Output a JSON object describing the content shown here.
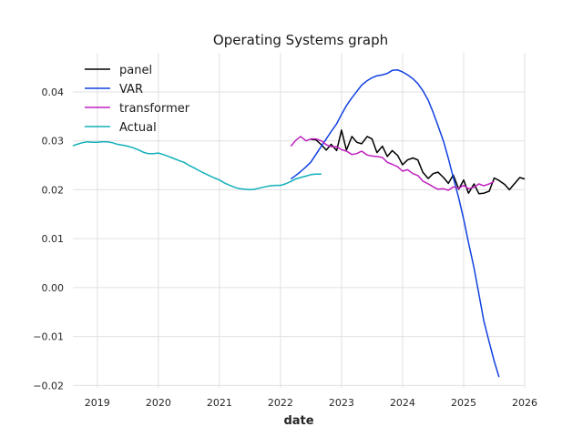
{
  "chart_data": {
    "type": "line",
    "title": "Operating Systems graph",
    "xlabel": "date",
    "ylabel": "",
    "xlim": [
      2018.6,
      2026.0
    ],
    "ylim": [
      -0.0205,
      0.048
    ],
    "x_ticks": [
      2019,
      2020,
      2021,
      2022,
      2023,
      2024,
      2025,
      2026
    ],
    "y_ticks": [
      -0.02,
      -0.01,
      0.0,
      0.01,
      0.02,
      0.03,
      0.04
    ],
    "y_tick_labels": [
      "−0.02",
      "−0.01",
      "0.00",
      "0.01",
      "0.02",
      "0.03",
      "0.04"
    ],
    "grid": true,
    "legend_position": "top-left",
    "series": [
      {
        "name": "panel",
        "color": "#000000",
        "points": [
          [
            2022.5,
            0.0303
          ],
          [
            2022.58,
            0.0302
          ],
          [
            2022.67,
            0.0292
          ],
          [
            2022.75,
            0.0281
          ],
          [
            2022.83,
            0.0293
          ],
          [
            2022.92,
            0.028
          ],
          [
            2023.0,
            0.0322
          ],
          [
            2023.08,
            0.0281
          ],
          [
            2023.17,
            0.0309
          ],
          [
            2023.25,
            0.0297
          ],
          [
            2023.33,
            0.0294
          ],
          [
            2023.42,
            0.0309
          ],
          [
            2023.5,
            0.0304
          ],
          [
            2023.58,
            0.0276
          ],
          [
            2023.67,
            0.0289
          ],
          [
            2023.75,
            0.0268
          ],
          [
            2023.83,
            0.028
          ],
          [
            2023.92,
            0.027
          ],
          [
            2024.0,
            0.0251
          ],
          [
            2024.08,
            0.0261
          ],
          [
            2024.17,
            0.0265
          ],
          [
            2024.25,
            0.0261
          ],
          [
            2024.33,
            0.0236
          ],
          [
            2024.42,
            0.0223
          ],
          [
            2024.5,
            0.0233
          ],
          [
            2024.58,
            0.0236
          ],
          [
            2024.67,
            0.0225
          ],
          [
            2024.75,
            0.0213
          ],
          [
            2024.83,
            0.023
          ],
          [
            2024.92,
            0.0201
          ],
          [
            2025.0,
            0.022
          ],
          [
            2025.08,
            0.0193
          ],
          [
            2025.17,
            0.0212
          ],
          [
            2025.25,
            0.0192
          ],
          [
            2025.33,
            0.0193
          ],
          [
            2025.42,
            0.0197
          ],
          [
            2025.5,
            0.0224
          ],
          [
            2025.58,
            0.0219
          ],
          [
            2025.67,
            0.0211
          ],
          [
            2025.75,
            0.02
          ],
          [
            2025.83,
            0.0212
          ],
          [
            2025.92,
            0.0225
          ],
          [
            2026.0,
            0.0222
          ]
        ]
      },
      {
        "name": "VAR",
        "color": "#1040e0",
        "points": [
          [
            2022.17,
            0.0222
          ],
          [
            2022.25,
            0.0229
          ],
          [
            2022.33,
            0.0237
          ],
          [
            2022.42,
            0.0247
          ],
          [
            2022.5,
            0.0257
          ],
          [
            2022.58,
            0.0272
          ],
          [
            2022.67,
            0.0289
          ],
          [
            2022.75,
            0.0304
          ],
          [
            2022.83,
            0.0319
          ],
          [
            2022.92,
            0.0335
          ],
          [
            2023.0,
            0.0354
          ],
          [
            2023.08,
            0.0372
          ],
          [
            2023.17,
            0.0388
          ],
          [
            2023.25,
            0.0401
          ],
          [
            2023.33,
            0.0414
          ],
          [
            2023.42,
            0.0423
          ],
          [
            2023.5,
            0.0429
          ],
          [
            2023.58,
            0.0433
          ],
          [
            2023.67,
            0.0435
          ],
          [
            2023.75,
            0.0438
          ],
          [
            2023.83,
            0.0444
          ],
          [
            2023.92,
            0.0445
          ],
          [
            2024.0,
            0.0441
          ],
          [
            2024.08,
            0.0435
          ],
          [
            2024.17,
            0.0427
          ],
          [
            2024.25,
            0.0417
          ],
          [
            2024.33,
            0.0403
          ],
          [
            2024.42,
            0.0383
          ],
          [
            2024.5,
            0.0358
          ],
          [
            2024.58,
            0.0331
          ],
          [
            2024.67,
            0.0299
          ],
          [
            2024.75,
            0.0264
          ],
          [
            2024.83,
            0.0225
          ],
          [
            2024.92,
            0.0183
          ],
          [
            2025.0,
            0.014
          ],
          [
            2025.08,
            0.0092
          ],
          [
            2025.17,
            0.004
          ],
          [
            2025.25,
            -0.0013
          ],
          [
            2025.33,
            -0.0068
          ],
          [
            2025.42,
            -0.0112
          ],
          [
            2025.5,
            -0.015
          ],
          [
            2025.58,
            -0.0183
          ]
        ]
      },
      {
        "name": "transformer",
        "color": "#c020c0",
        "points": [
          [
            2022.17,
            0.0289
          ],
          [
            2022.25,
            0.0301
          ],
          [
            2022.33,
            0.0309
          ],
          [
            2022.42,
            0.03
          ],
          [
            2022.5,
            0.0304
          ],
          [
            2022.58,
            0.0304
          ],
          [
            2022.67,
            0.03
          ],
          [
            2022.75,
            0.0292
          ],
          [
            2022.83,
            0.0288
          ],
          [
            2022.92,
            0.0288
          ],
          [
            2023.0,
            0.0282
          ],
          [
            2023.08,
            0.0279
          ],
          [
            2023.17,
            0.0272
          ],
          [
            2023.25,
            0.0274
          ],
          [
            2023.33,
            0.0279
          ],
          [
            2023.42,
            0.0271
          ],
          [
            2023.5,
            0.0269
          ],
          [
            2023.58,
            0.0268
          ],
          [
            2023.67,
            0.0266
          ],
          [
            2023.75,
            0.0256
          ],
          [
            2023.83,
            0.0252
          ],
          [
            2023.92,
            0.0247
          ],
          [
            2024.0,
            0.0238
          ],
          [
            2024.08,
            0.0241
          ],
          [
            2024.17,
            0.0233
          ],
          [
            2024.25,
            0.0229
          ],
          [
            2024.33,
            0.0218
          ],
          [
            2024.42,
            0.0212
          ],
          [
            2024.5,
            0.0206
          ],
          [
            2024.58,
            0.0201
          ],
          [
            2024.67,
            0.0202
          ],
          [
            2024.75,
            0.0199
          ],
          [
            2024.83,
            0.0206
          ],
          [
            2024.92,
            0.0203
          ],
          [
            2025.0,
            0.0209
          ],
          [
            2025.08,
            0.0202
          ],
          [
            2025.17,
            0.0205
          ],
          [
            2025.25,
            0.0212
          ],
          [
            2025.33,
            0.0208
          ],
          [
            2025.42,
            0.0212
          ],
          [
            2025.5,
            0.0217
          ]
        ]
      },
      {
        "name": "Actual",
        "color": "#10b0b8",
        "points": [
          [
            2018.6,
            0.029
          ],
          [
            2018.67,
            0.0293
          ],
          [
            2018.75,
            0.0296
          ],
          [
            2018.83,
            0.0298
          ],
          [
            2018.92,
            0.0297
          ],
          [
            2019.0,
            0.0297
          ],
          [
            2019.08,
            0.0298
          ],
          [
            2019.17,
            0.0298
          ],
          [
            2019.25,
            0.0296
          ],
          [
            2019.33,
            0.0293
          ],
          [
            2019.42,
            0.0291
          ],
          [
            2019.5,
            0.0289
          ],
          [
            2019.58,
            0.0286
          ],
          [
            2019.67,
            0.0282
          ],
          [
            2019.75,
            0.0277
          ],
          [
            2019.83,
            0.0274
          ],
          [
            2019.92,
            0.0274
          ],
          [
            2020.0,
            0.0275
          ],
          [
            2020.08,
            0.0272
          ],
          [
            2020.17,
            0.0268
          ],
          [
            2020.25,
            0.0264
          ],
          [
            2020.33,
            0.026
          ],
          [
            2020.42,
            0.0256
          ],
          [
            2020.5,
            0.025
          ],
          [
            2020.58,
            0.0245
          ],
          [
            2020.67,
            0.0239
          ],
          [
            2020.75,
            0.0234
          ],
          [
            2020.83,
            0.0229
          ],
          [
            2020.92,
            0.0224
          ],
          [
            2021.0,
            0.022
          ],
          [
            2021.08,
            0.0214
          ],
          [
            2021.17,
            0.0209
          ],
          [
            2021.25,
            0.0205
          ],
          [
            2021.33,
            0.0202
          ],
          [
            2021.42,
            0.0201
          ],
          [
            2021.5,
            0.02
          ],
          [
            2021.58,
            0.0201
          ],
          [
            2021.67,
            0.0204
          ],
          [
            2021.75,
            0.0206
          ],
          [
            2021.83,
            0.0208
          ],
          [
            2021.92,
            0.0209
          ],
          [
            2022.0,
            0.0209
          ],
          [
            2022.08,
            0.0212
          ],
          [
            2022.17,
            0.0217
          ],
          [
            2022.25,
            0.0222
          ],
          [
            2022.33,
            0.0225
          ],
          [
            2022.42,
            0.0228
          ],
          [
            2022.5,
            0.0231
          ],
          [
            2022.58,
            0.0232
          ],
          [
            2022.67,
            0.0232
          ]
        ]
      }
    ]
  }
}
